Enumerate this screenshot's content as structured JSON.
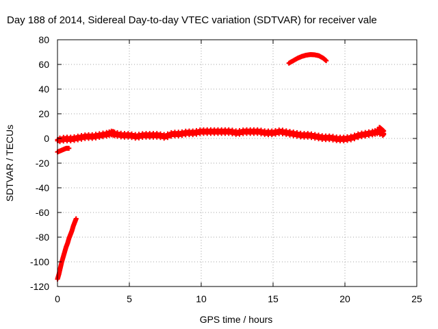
{
  "chart_data": {
    "type": "scatter",
    "title": "Day 188 of 2014, Sidereal Day-to-day VTEC variation (SDTVAR) for receiver vale",
    "xlabel": "GPS time / hours",
    "ylabel": "SDTVAR / TECUs",
    "xlim": [
      0,
      25
    ],
    "ylim": [
      -120,
      80
    ],
    "xticks": [
      0,
      5,
      10,
      15,
      20,
      25
    ],
    "yticks": [
      -120,
      -100,
      -80,
      -60,
      -40,
      -20,
      0,
      20,
      40,
      60,
      80
    ],
    "grid": true,
    "marker": "+",
    "series": [
      {
        "name": "main-band",
        "color": "#ff0000",
        "x": [
          0.0,
          0.5,
          1.0,
          1.5,
          2.0,
          2.5,
          3.0,
          3.5,
          3.8,
          4.0,
          4.5,
          5.0,
          5.5,
          6.0,
          6.5,
          7.0,
          7.5,
          8.0,
          8.5,
          9.0,
          9.5,
          10.0,
          10.5,
          11.0,
          11.5,
          12.0,
          12.5,
          13.0,
          13.5,
          14.0,
          14.5,
          15.0,
          15.5,
          16.0,
          16.5,
          17.0,
          17.5,
          18.0,
          18.5,
          19.0,
          19.5,
          20.0,
          20.5,
          21.0,
          21.5,
          22.0,
          22.3,
          22.7
        ],
        "y": [
          -2,
          -1,
          -1,
          0,
          1,
          1,
          2,
          3,
          4,
          3,
          2,
          2,
          1,
          2,
          2,
          2,
          1,
          3,
          3,
          4,
          4,
          5,
          5,
          5,
          5,
          5,
          4,
          5,
          5,
          5,
          4,
          4,
          5,
          4,
          3,
          2,
          2,
          1,
          0,
          0,
          -1,
          -1,
          0,
          2,
          3,
          4,
          5,
          3
        ]
      },
      {
        "name": "low-offset",
        "color": "#ff0000",
        "x": [
          0.0,
          0.2,
          0.4,
          0.6,
          0.8
        ],
        "y": [
          -11,
          -10,
          -9,
          -8,
          -8
        ]
      },
      {
        "name": "steep-rise",
        "color": "#ff0000",
        "x": [
          0.0,
          0.1,
          0.2,
          0.3,
          0.4,
          0.5,
          0.6,
          0.7,
          0.8,
          0.9,
          1.0,
          1.1,
          1.2,
          1.3
        ],
        "y": [
          -114,
          -110,
          -105,
          -100,
          -96,
          -92,
          -88,
          -85,
          -81,
          -78,
          -75,
          -71,
          -68,
          -65
        ]
      },
      {
        "name": "high-arc",
        "color": "#ff0000",
        "x": [
          16.1,
          16.4,
          16.7,
          17.0,
          17.3,
          17.6,
          17.9,
          18.2,
          18.5,
          18.7
        ],
        "y": [
          61,
          63,
          65,
          66.5,
          67.5,
          68,
          67.8,
          67,
          65,
          63
        ]
      },
      {
        "name": "late-cluster",
        "color": "#ff0000",
        "x": [
          22.4,
          22.5,
          22.6,
          22.7
        ],
        "y": [
          9,
          8,
          7,
          6
        ]
      }
    ]
  }
}
